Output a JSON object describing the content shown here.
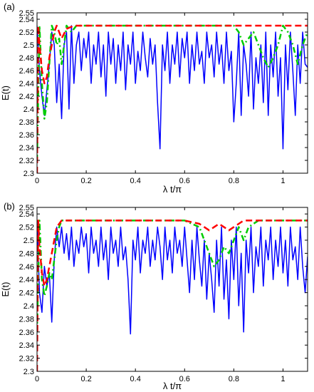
{
  "chart_data": [
    {
      "type": "line",
      "panel_label": "(a)",
      "xlabel": "λ t/π",
      "ylabel": "E(t)",
      "xlim": [
        0,
        1.1
      ],
      "ylim": [
        2.3,
        2.55
      ],
      "x_ticks": [
        "0",
        "0.2",
        "0.4",
        "0.6",
        "0.8",
        "1"
      ],
      "y_ticks": [
        "2.3",
        "2.32",
        "2.34",
        "2.36",
        "2.38",
        "2.4",
        "2.42",
        "2.44",
        "2.46",
        "2.48",
        "2.5",
        "2.52",
        "2.54",
        "2.55"
      ],
      "grid": false,
      "series": [
        {
          "color": "#0000ff",
          "style": "solid",
          "x": [
            0,
            0.01,
            0.02,
            0.03,
            0.04,
            0.05,
            0.06,
            0.07,
            0.08,
            0.09,
            0.1,
            0.11,
            0.12,
            0.13,
            0.14,
            0.15,
            0.16,
            0.17,
            0.18,
            0.19,
            0.2,
            0.21,
            0.22,
            0.23,
            0.24,
            0.25,
            0.26,
            0.27,
            0.28,
            0.29,
            0.3,
            0.31,
            0.32,
            0.33,
            0.34,
            0.35,
            0.36,
            0.37,
            0.38,
            0.39,
            0.4,
            0.41,
            0.42,
            0.43,
            0.44,
            0.45,
            0.46,
            0.47,
            0.48,
            0.49,
            0.5,
            0.51,
            0.52,
            0.53,
            0.54,
            0.55,
            0.56,
            0.57,
            0.58,
            0.59,
            0.6,
            0.61,
            0.62,
            0.63,
            0.64,
            0.65,
            0.66,
            0.67,
            0.68,
            0.69,
            0.7,
            0.71,
            0.72,
            0.73,
            0.74,
            0.75,
            0.76,
            0.77,
            0.78,
            0.79,
            0.8,
            0.81,
            0.82,
            0.83,
            0.84,
            0.85,
            0.86,
            0.87,
            0.88,
            0.89,
            0.9,
            0.91,
            0.92,
            0.93,
            0.94,
            0.95,
            0.96,
            0.97,
            0.98,
            0.99,
            1.0,
            1.01,
            1.02,
            1.03,
            1.04,
            1.05,
            1.06,
            1.07,
            1.08,
            1.09,
            1.1
          ],
          "y": [
            2.53,
            2.46,
            2.42,
            2.39,
            2.43,
            2.47,
            2.52,
            2.5,
            2.41,
            2.47,
            2.385,
            2.5,
            2.52,
            2.4,
            2.53,
            2.44,
            2.5,
            2.52,
            2.46,
            2.51,
            2.48,
            2.52,
            2.44,
            2.5,
            2.47,
            2.52,
            2.45,
            2.5,
            2.42,
            2.52,
            2.47,
            2.51,
            2.44,
            2.5,
            2.46,
            2.52,
            2.43,
            2.5,
            2.47,
            2.52,
            2.44,
            2.49,
            2.46,
            2.52,
            2.48,
            2.45,
            2.51,
            2.47,
            2.5,
            2.41,
            2.338,
            2.5,
            2.46,
            2.52,
            2.44,
            2.5,
            2.47,
            2.52,
            2.45,
            2.51,
            2.48,
            2.52,
            2.44,
            2.5,
            2.46,
            2.52,
            2.47,
            2.49,
            2.44,
            2.52,
            2.48,
            2.5,
            2.45,
            2.52,
            2.47,
            2.5,
            2.44,
            2.52,
            2.46,
            2.49,
            2.38,
            2.44,
            2.52,
            2.39,
            2.5,
            2.47,
            2.42,
            2.52,
            2.4,
            2.48,
            2.44,
            2.5,
            2.41,
            2.52,
            2.39,
            2.5,
            2.45,
            2.52,
            2.42,
            2.48,
            2.338,
            2.5,
            2.43,
            2.52,
            2.46,
            2.39,
            2.5,
            2.44,
            2.52,
            2.47,
            2.465
          ]
        },
        {
          "color": "#00cc00",
          "style": "dash-dot",
          "x": [
            0,
            0.01,
            0.02,
            0.03,
            0.04,
            0.05,
            0.06,
            0.07,
            0.08,
            0.09,
            0.1,
            0.11,
            0.12,
            0.14,
            0.16,
            0.2,
            0.3,
            0.4,
            0.5,
            0.6,
            0.7,
            0.8,
            0.82,
            0.84,
            0.86,
            0.88,
            0.9,
            0.92,
            0.94,
            0.96,
            0.98,
            1.0,
            1.02,
            1.04,
            1.06,
            1.08,
            1.1
          ],
          "y": [
            2.32,
            2.53,
            2.44,
            2.385,
            2.41,
            2.47,
            2.53,
            2.52,
            2.5,
            2.51,
            2.47,
            2.5,
            2.53,
            2.52,
            2.53,
            2.53,
            2.53,
            2.53,
            2.53,
            2.53,
            2.53,
            2.53,
            2.52,
            2.5,
            2.51,
            2.52,
            2.5,
            2.48,
            2.465,
            2.48,
            2.5,
            2.53,
            2.52,
            2.5,
            2.47,
            2.5,
            2.52
          ]
        },
        {
          "color": "#ff0000",
          "style": "dashed",
          "x": [
            0,
            0.005,
            0.01,
            0.02,
            0.03,
            0.04,
            0.05,
            0.06,
            0.07,
            0.08,
            0.09,
            0.1,
            0.12,
            0.15,
            0.2,
            0.4,
            0.6,
            0.8,
            1.0,
            1.1
          ],
          "y": [
            2.3,
            2.53,
            2.5,
            2.46,
            2.44,
            2.45,
            2.48,
            2.5,
            2.52,
            2.53,
            2.52,
            2.51,
            2.525,
            2.53,
            2.53,
            2.53,
            2.53,
            2.53,
            2.53,
            2.53
          ]
        }
      ]
    },
    {
      "type": "line",
      "panel_label": "(b)",
      "xlabel": "λ t/π",
      "ylabel": "E(t)",
      "xlim": [
        0,
        1.1
      ],
      "ylim": [
        2.3,
        2.55
      ],
      "x_ticks": [
        "0",
        "0.2",
        "0.4",
        "0.6",
        "0.8",
        "1"
      ],
      "y_ticks": [
        "2.3",
        "2.32",
        "2.34",
        "2.36",
        "2.38",
        "2.4",
        "2.42",
        "2.44",
        "2.46",
        "2.48",
        "2.5",
        "2.52",
        "2.54",
        "2.55"
      ],
      "grid": false,
      "series": [
        {
          "color": "#0000ff",
          "style": "solid",
          "x": [
            0,
            0.01,
            0.02,
            0.03,
            0.04,
            0.05,
            0.06,
            0.07,
            0.08,
            0.09,
            0.1,
            0.11,
            0.12,
            0.13,
            0.14,
            0.15,
            0.16,
            0.17,
            0.18,
            0.19,
            0.2,
            0.21,
            0.22,
            0.23,
            0.24,
            0.25,
            0.26,
            0.27,
            0.28,
            0.29,
            0.3,
            0.31,
            0.32,
            0.33,
            0.34,
            0.35,
            0.36,
            0.37,
            0.38,
            0.39,
            0.4,
            0.41,
            0.42,
            0.43,
            0.44,
            0.45,
            0.46,
            0.47,
            0.48,
            0.49,
            0.5,
            0.51,
            0.52,
            0.53,
            0.54,
            0.55,
            0.56,
            0.57,
            0.58,
            0.59,
            0.6,
            0.61,
            0.62,
            0.63,
            0.64,
            0.65,
            0.66,
            0.67,
            0.68,
            0.69,
            0.7,
            0.71,
            0.72,
            0.73,
            0.74,
            0.75,
            0.76,
            0.77,
            0.78,
            0.79,
            0.8,
            0.81,
            0.82,
            0.83,
            0.84,
            0.85,
            0.86,
            0.87,
            0.88,
            0.89,
            0.9,
            0.91,
            0.92,
            0.93,
            0.94,
            0.95,
            0.96,
            0.97,
            0.98,
            0.99,
            1.0,
            1.01,
            1.02,
            1.03,
            1.04,
            1.05,
            1.06,
            1.07,
            1.08,
            1.09,
            1.1
          ],
          "y": [
            2.53,
            2.42,
            2.39,
            2.46,
            2.43,
            2.45,
            2.375,
            2.47,
            2.52,
            2.49,
            2.52,
            2.48,
            2.51,
            2.47,
            2.52,
            2.46,
            2.5,
            2.48,
            2.52,
            2.49,
            2.51,
            2.45,
            2.52,
            2.48,
            2.5,
            2.46,
            2.52,
            2.47,
            2.5,
            2.44,
            2.52,
            2.48,
            2.5,
            2.46,
            2.52,
            2.47,
            2.49,
            2.44,
            2.357,
            2.5,
            2.47,
            2.52,
            2.45,
            2.5,
            2.48,
            2.52,
            2.46,
            2.5,
            2.47,
            2.52,
            2.49,
            2.44,
            2.52,
            2.47,
            2.5,
            2.45,
            2.52,
            2.48,
            2.5,
            2.46,
            2.52,
            2.47,
            2.42,
            2.5,
            2.44,
            2.52,
            2.47,
            2.43,
            2.5,
            2.41,
            2.48,
            2.44,
            2.39,
            2.5,
            2.43,
            2.52,
            2.41,
            2.47,
            2.38,
            2.5,
            2.44,
            2.52,
            2.4,
            2.48,
            2.36,
            2.5,
            2.45,
            2.52,
            2.42,
            2.49,
            2.46,
            2.52,
            2.43,
            2.5,
            2.47,
            2.52,
            2.44,
            2.5,
            2.46,
            2.52,
            2.45,
            2.5,
            2.43,
            2.52,
            2.47,
            2.49,
            2.44,
            2.52,
            2.46,
            2.42,
            2.475
          ]
        },
        {
          "color": "#00cc00",
          "style": "dash-dot",
          "x": [
            0,
            0.01,
            0.02,
            0.03,
            0.04,
            0.05,
            0.06,
            0.07,
            0.08,
            0.09,
            0.1,
            0.12,
            0.15,
            0.2,
            0.3,
            0.4,
            0.5,
            0.6,
            0.66,
            0.68,
            0.7,
            0.72,
            0.74,
            0.76,
            0.78,
            0.8,
            0.82,
            0.84,
            0.86,
            0.9,
            1.0,
            1.1
          ],
          "y": [
            2.36,
            2.53,
            2.44,
            2.415,
            2.43,
            2.45,
            2.44,
            2.47,
            2.5,
            2.52,
            2.53,
            2.53,
            2.53,
            2.53,
            2.53,
            2.53,
            2.53,
            2.53,
            2.52,
            2.5,
            2.48,
            2.46,
            2.47,
            2.49,
            2.48,
            2.5,
            2.52,
            2.5,
            2.52,
            2.53,
            2.53,
            2.53
          ]
        },
        {
          "color": "#ff0000",
          "style": "dashed",
          "x": [
            0,
            0.005,
            0.01,
            0.02,
            0.03,
            0.04,
            0.05,
            0.06,
            0.07,
            0.08,
            0.09,
            0.1,
            0.12,
            0.15,
            0.2,
            0.4,
            0.6,
            0.66,
            0.68,
            0.7,
            0.72,
            0.74,
            0.76,
            0.78,
            0.8,
            0.82,
            0.84,
            0.86,
            0.9,
            1.0,
            1.1
          ],
          "y": [
            2.3,
            2.53,
            2.49,
            2.45,
            2.43,
            2.44,
            2.46,
            2.48,
            2.5,
            2.52,
            2.525,
            2.53,
            2.53,
            2.53,
            2.53,
            2.53,
            2.53,
            2.525,
            2.52,
            2.515,
            2.52,
            2.525,
            2.52,
            2.515,
            2.52,
            2.525,
            2.53,
            2.53,
            2.53,
            2.53,
            2.53
          ]
        }
      ]
    }
  ]
}
